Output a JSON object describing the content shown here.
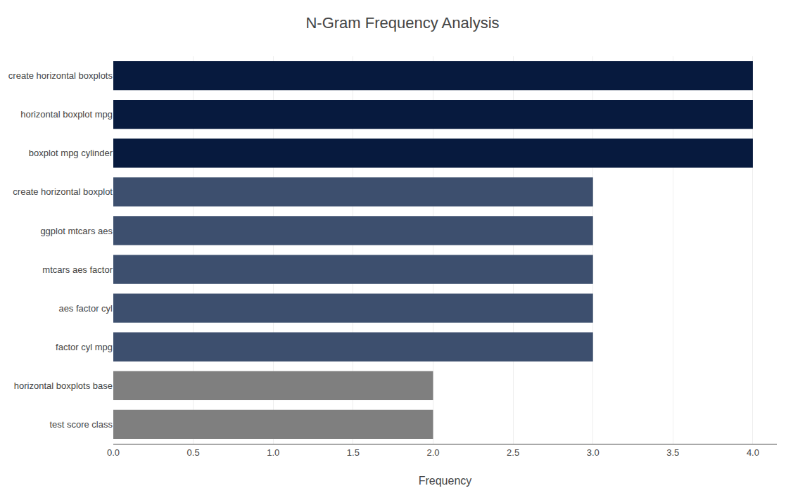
{
  "chart_data": {
    "type": "bar",
    "orientation": "horizontal",
    "title": "N-Gram Frequency Analysis",
    "xlabel": "Frequency",
    "categories": [
      "test score class",
      "horizontal boxplots base",
      "factor cyl mpg",
      "aes factor cyl",
      "mtcars aes factor",
      "ggplot mtcars aes",
      "create horizontal boxplot",
      "boxplot mpg cylinder",
      "horizontal boxplot mpg",
      "create horizontal boxplots"
    ],
    "values": [
      2,
      2,
      3,
      3,
      3,
      3,
      3,
      4,
      4,
      4
    ],
    "colors": [
      "#7f7f7f",
      "#7f7f7f",
      "#3d4f6e",
      "#3d4f6e",
      "#3d4f6e",
      "#3d4f6e",
      "#3d4f6e",
      "#071a3e",
      "#071a3e",
      "#071a3e"
    ],
    "xlim": [
      0,
      4.15
    ],
    "xticks": [
      {
        "value": 0,
        "label": "0.0"
      },
      0.5,
      {
        "value": 1,
        "label": "1.0"
      },
      1.5,
      {
        "value": 2,
        "label": "2.0"
      },
      2.5,
      {
        "value": 3,
        "label": "3.0"
      },
      3.5,
      {
        "value": 4,
        "label": "4.0"
      }
    ],
    "grid": true
  }
}
